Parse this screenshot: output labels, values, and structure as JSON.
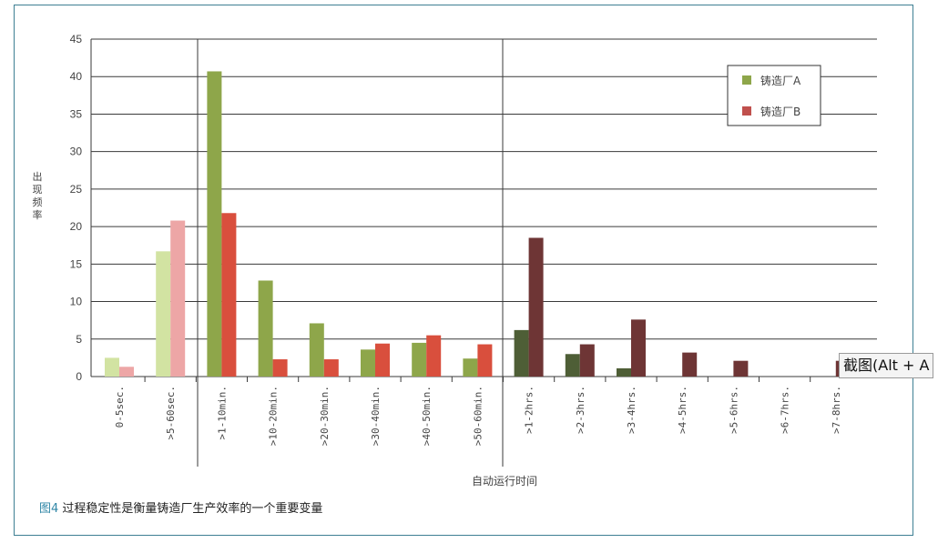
{
  "chart_data": {
    "type": "bar",
    "ylabel": "出现频率",
    "xlabel": "自动运行时间",
    "ylim": [
      0,
      45
    ],
    "yticks": [
      0,
      5,
      10,
      15,
      20,
      25,
      30,
      35,
      40,
      45
    ],
    "grid": true,
    "legend_position": "top-right",
    "categories": [
      "0-5sec.",
      ">5-60sec.",
      ">1-10min.",
      ">10-20min.",
      ">20-30min.",
      ">30-40min.",
      ">40-50min.",
      ">50-60min.",
      ">1-2hrs.",
      ">2-3hrs.",
      ">3-4hrs.",
      ">4-5hrs.",
      ">5-6hrs.",
      ">6-7hrs.",
      ">7-8hrs."
    ],
    "series": [
      {
        "name": "铸造厂A",
        "color": "#8ea64a",
        "values": [
          2.5,
          16.7,
          40.7,
          12.8,
          7.1,
          3.6,
          4.5,
          2.4,
          6.2,
          3.0,
          1.1,
          0,
          0,
          0,
          0
        ],
        "group_colors": [
          "#d2e3a2",
          "#d2e3a2",
          "#8ea64a",
          "#8ea64a",
          "#8ea64a",
          "#8ea64a",
          "#8ea64a",
          "#8ea64a",
          "#4e5e36",
          "#4e5e36",
          "#4e5e36",
          "#4e5e36",
          "#4e5e36",
          "#4e5e36",
          "#4e5e36"
        ]
      },
      {
        "name": "铸造厂B",
        "color": "#c0504d",
        "values": [
          1.3,
          20.8,
          21.8,
          2.3,
          2.3,
          4.4,
          5.5,
          4.3,
          18.5,
          4.3,
          7.6,
          3.2,
          2.1,
          0,
          2.1
        ],
        "group_colors": [
          "#eda6a6",
          "#eda6a6",
          "#d94f3d",
          "#d94f3d",
          "#d94f3d",
          "#d94f3d",
          "#d94f3d",
          "#d94f3d",
          "#6e3535",
          "#6e3535",
          "#6e3535",
          "#6e3535",
          "#6e3535",
          "#6e3535",
          "#6e3535"
        ]
      }
    ]
  },
  "caption": {
    "figure": "图4",
    "text": "过程稳定性是衡量铸造厂生产效率的一个重要变量"
  },
  "tooltip": {
    "text": "截图(Alt + A"
  }
}
